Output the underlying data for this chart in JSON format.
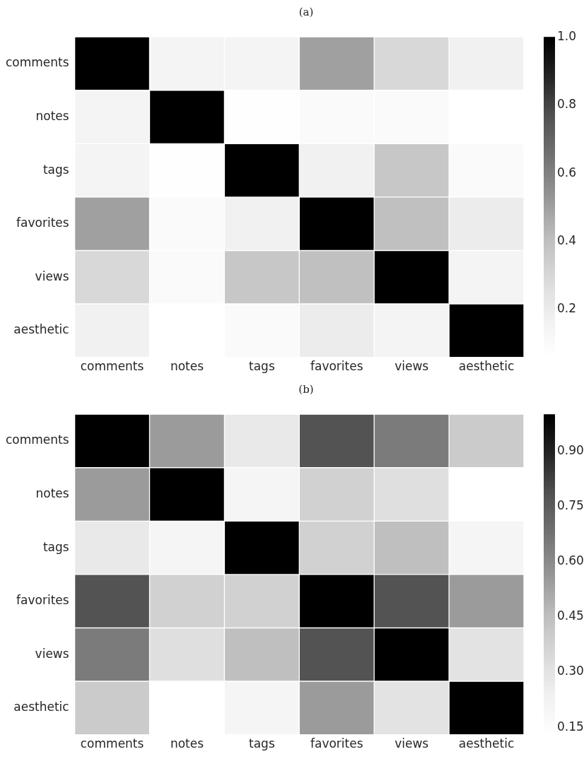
{
  "chart_data": [
    {
      "type": "heatmap",
      "title": "(a)",
      "categories": [
        "comments",
        "notes",
        "tags",
        "favorites",
        "views",
        "aesthetic"
      ],
      "y_categories": [
        "comments",
        "notes",
        "tags",
        "favorites",
        "views",
        "aesthetic"
      ],
      "cells": [
        [
          1.0,
          0.15,
          0.15,
          0.5,
          0.3,
          0.17
        ],
        [
          0.15,
          1.0,
          0.07,
          0.1,
          0.1,
          0.06
        ],
        [
          0.15,
          0.07,
          1.0,
          0.17,
          0.37,
          0.1
        ],
        [
          0.5,
          0.1,
          0.17,
          1.0,
          0.4,
          0.2
        ],
        [
          0.3,
          0.1,
          0.37,
          0.4,
          1.0,
          0.15
        ],
        [
          0.17,
          0.06,
          0.1,
          0.2,
          0.15,
          1.0
        ]
      ],
      "clim": [
        0.06,
        1.0
      ],
      "cticks": [
        0.2,
        0.4,
        0.6,
        0.8,
        {
          "value": 1.0,
          "label": "1.0"
        }
      ]
    },
    {
      "type": "heatmap",
      "title": "(b)",
      "categories": [
        "comments",
        "notes",
        "tags",
        "favorites",
        "views",
        "aesthetic"
      ],
      "y_categories": [
        "comments",
        "notes",
        "tags",
        "favorites",
        "views",
        "aesthetic"
      ],
      "cells": [
        [
          1.0,
          0.55,
          0.27,
          0.78,
          0.65,
          0.4
        ],
        [
          0.55,
          1.0,
          0.2,
          0.38,
          0.32,
          0.13
        ],
        [
          0.27,
          0.2,
          1.0,
          0.38,
          0.45,
          0.2
        ],
        [
          0.78,
          0.38,
          0.38,
          1.0,
          0.78,
          0.55
        ],
        [
          0.65,
          0.32,
          0.45,
          0.78,
          1.0,
          0.3
        ],
        [
          0.4,
          0.13,
          0.2,
          0.55,
          0.3,
          1.0
        ]
      ],
      "clim": [
        0.13,
        1.0
      ],
      "cticks": [
        {
          "value": 0.15,
          "label": "0.15"
        },
        {
          "value": 0.3,
          "label": "0.30"
        },
        {
          "value": 0.45,
          "label": "0.45"
        },
        {
          "value": 0.6,
          "label": "0.60"
        },
        {
          "value": 0.75,
          "label": "0.75"
        },
        {
          "value": 0.9,
          "label": "0.90"
        }
      ]
    }
  ]
}
